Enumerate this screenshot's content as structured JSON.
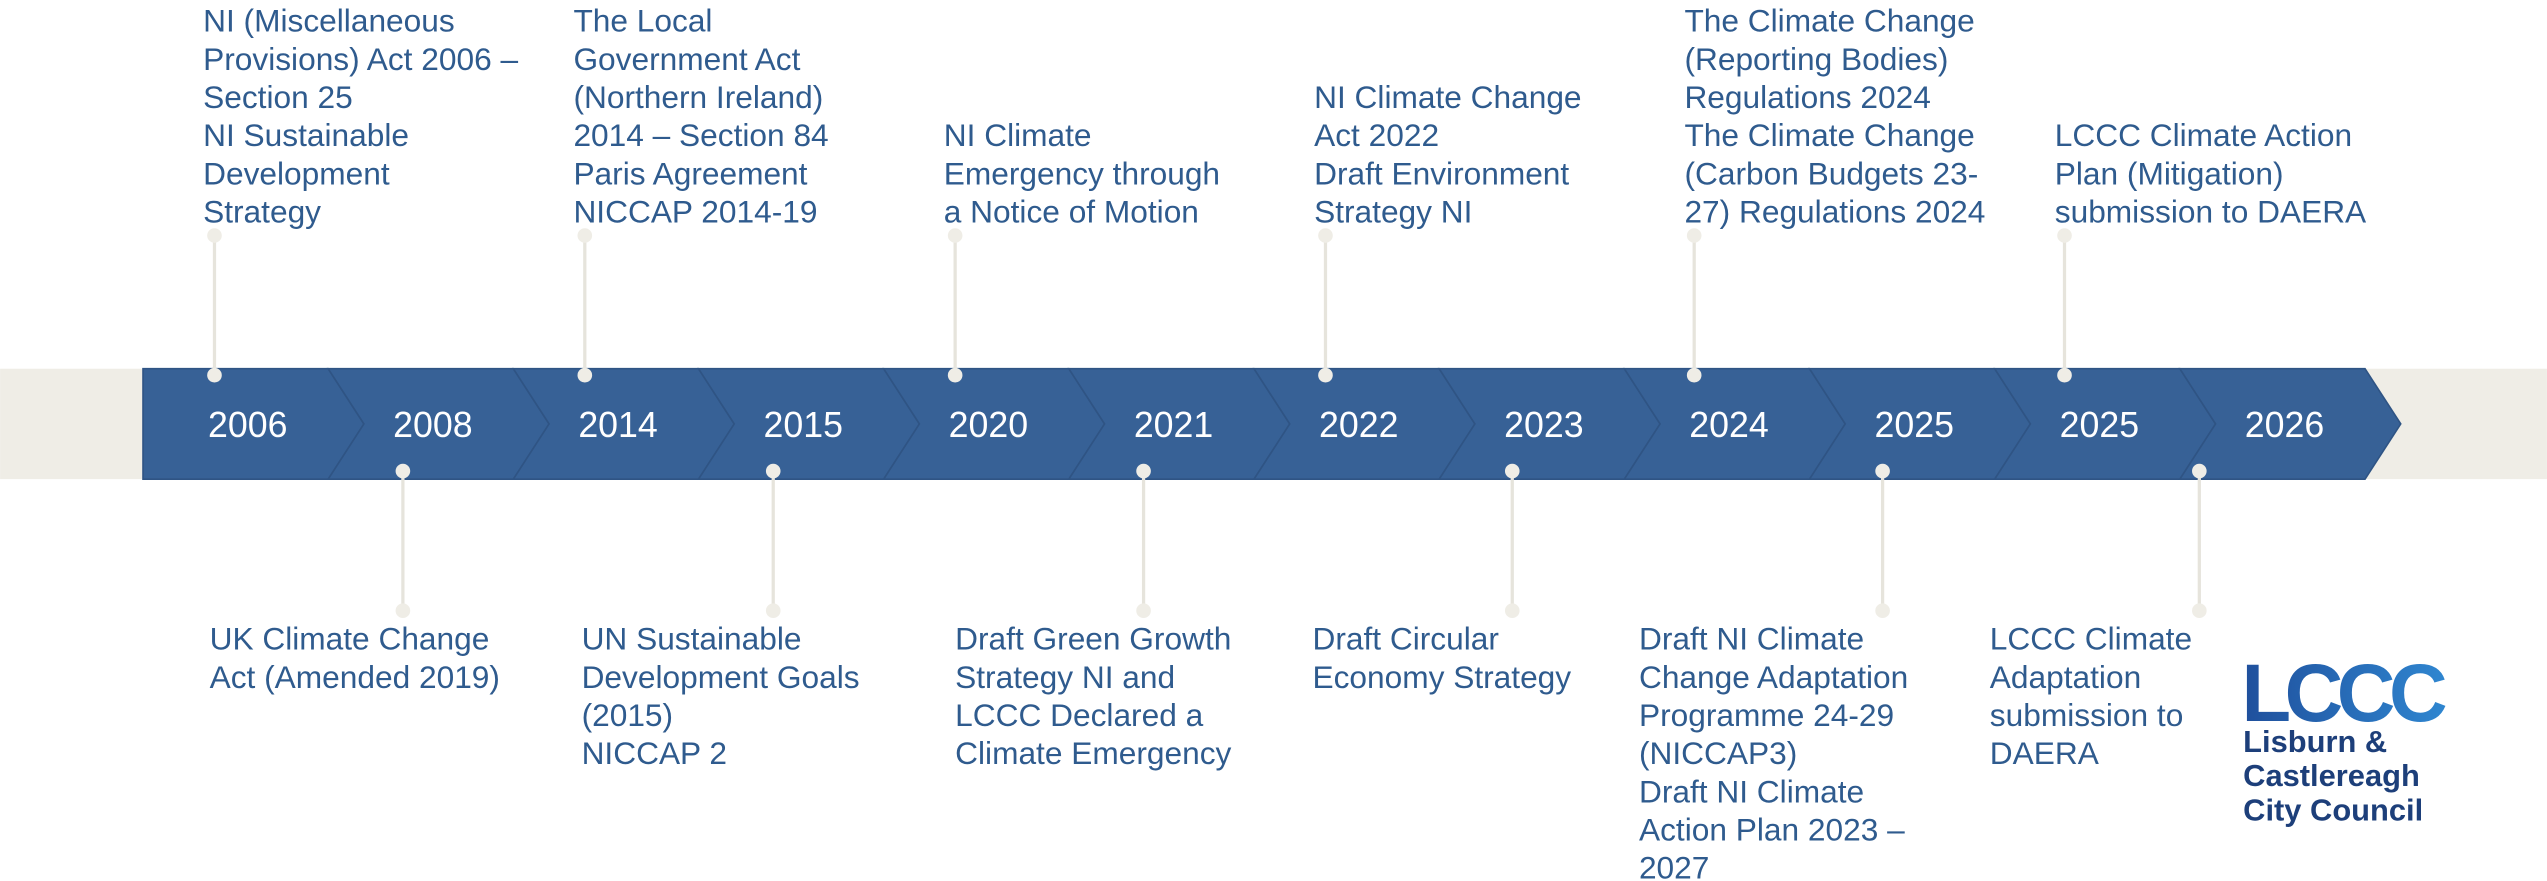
{
  "timeline": {
    "years": [
      "2006",
      "2008",
      "2014",
      "2015",
      "2020",
      "2021",
      "2022",
      "2023",
      "2024",
      "2025",
      "2025",
      "2026"
    ],
    "above": [
      {
        "lines": [
          "NI (Miscellaneous",
          "Provisions) Act 2006 –",
          "Section 25",
          "NI Sustainable",
          "Development",
          "Strategy"
        ]
      },
      {
        "lines": [
          "The Local",
          "Government Act",
          "(Northern Ireland)",
          "2014 – Section 84",
          "Paris Agreement",
          "NICCAP 2014-19"
        ]
      },
      {
        "lines": [
          "NI Climate",
          "Emergency through",
          "a Notice of Motion"
        ]
      },
      {
        "lines": [
          "NI Climate Change",
          "Act 2022",
          "Draft Environment",
          "Strategy NI"
        ]
      },
      {
        "lines": [
          "The Climate Change",
          "(Reporting Bodies)",
          "Regulations 2024",
          "The Climate Change",
          "(Carbon Budgets 23-",
          "27) Regulations 2024"
        ]
      },
      {
        "lines": [
          "LCCC Climate Action",
          "Plan (Mitigation)",
          "submission to DAERA"
        ]
      }
    ],
    "below": [
      {
        "lines": [
          "UK Climate Change",
          "Act (Amended 2019)"
        ]
      },
      {
        "lines": [
          "UN Sustainable",
          "Development Goals",
          "(2015)",
          "NICCAP 2"
        ]
      },
      {
        "lines": [
          "Draft Green Growth",
          "Strategy NI and",
          "LCCC Declared a",
          "Climate Emergency"
        ]
      },
      {
        "lines": [
          "Draft Circular",
          "Economy Strategy"
        ]
      },
      {
        "lines": [
          "Draft NI Climate",
          "Change Adaptation",
          "Programme 24-29",
          "(NICCAP3)",
          "Draft NI Climate",
          "Action Plan 2023 –",
          "2027"
        ]
      },
      {
        "lines": [
          "LCCC Climate",
          "Adaptation",
          "submission to",
          "DAERA"
        ]
      }
    ]
  },
  "logo": {
    "mark": "LCCC",
    "lines": [
      "Lisburn &",
      "Castlereagh",
      "City Council"
    ]
  }
}
